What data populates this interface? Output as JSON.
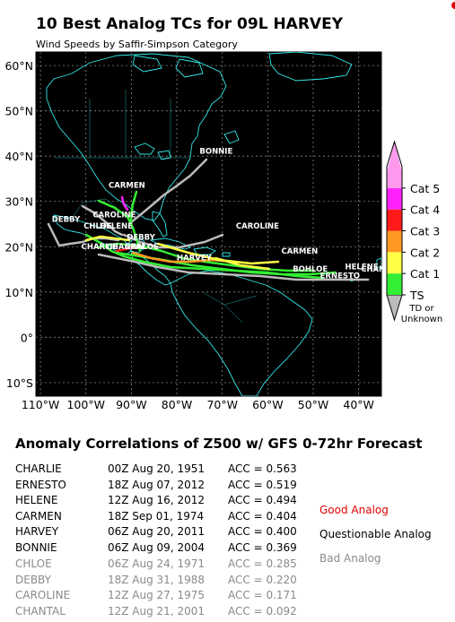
{
  "title": "10 Best Analog TCs for 09L HARVEY",
  "subtitle": "Wind Speeds by Saffir-Simpson Category",
  "map": {
    "lat_labels": [
      "60°N",
      "50°N",
      "40°N",
      "30°N",
      "20°N",
      "10°N",
      "0°",
      "10°S"
    ],
    "lon_labels": [
      "110°W",
      "100°W",
      "90°W",
      "80°W",
      "70°W",
      "60°W",
      "50°W",
      "40°W"
    ],
    "lat_range": [
      -13,
      63
    ],
    "lon_range": [
      -111,
      -35
    ],
    "storm_labels": [
      {
        "text": "BONNIE",
        "lon": -75,
        "lat": 40.5
      },
      {
        "text": "CARMEN",
        "lon": -95,
        "lat": 33
      },
      {
        "text": "DEBBY",
        "lon": -107.5,
        "lat": 25.5
      },
      {
        "text": "CAROLINE",
        "lon": -98.5,
        "lat": 26.5
      },
      {
        "text": "CHLOE",
        "lon": -100.5,
        "lat": 24
      },
      {
        "text": "HELENE",
        "lon": -97,
        "lat": 24
      },
      {
        "text": "DEBBY",
        "lon": -91,
        "lat": 21.5
      },
      {
        "text": "CHARLIE",
        "lon": -101,
        "lat": 19.5
      },
      {
        "text": "CHANTAL",
        "lon": -95.5,
        "lat": 19.5
      },
      {
        "text": "CHALOE",
        "lon": -91.5,
        "lat": 19.5
      },
      {
        "text": "CAROLINE",
        "lon": -67,
        "lat": 24
      },
      {
        "text": "HARVEY",
        "lon": -80,
        "lat": 17
      },
      {
        "text": "CARMEN",
        "lon": -57,
        "lat": 18.5
      },
      {
        "text": "HELENE",
        "lon": -43,
        "lat": 15
      },
      {
        "text": "BOHLOE",
        "lon": -54.5,
        "lat": 14.5
      },
      {
        "text": "CHANTAL",
        "lon": -39.5,
        "lat": 14.5
      },
      {
        "text": "ERNESTO",
        "lon": -48.5,
        "lat": 13
      }
    ]
  },
  "colorbar": {
    "categories": [
      "TS",
      "Cat 1",
      "Cat 2",
      "Cat 3",
      "Cat 4",
      "Cat 5"
    ],
    "colors": [
      "#33ee33",
      "#ffff44",
      "#ff9922",
      "#ff1a1a",
      "#ff22ff",
      "#ff99ee"
    ],
    "below_label_1": "TD or",
    "below_label_2": "Unknown",
    "below_color": "#bbbbbb"
  },
  "acc_title": "Anomaly Correlations of Z500 w/ GFS 0-72hr Forecast",
  "analogs": [
    {
      "name": "CHARLIE",
      "date": "00Z Aug 20, 1951",
      "acc": "ACC = 0.563",
      "quality": "good"
    },
    {
      "name": "ERNESTO",
      "date": "18Z Aug 07, 2012",
      "acc": "ACC = 0.519",
      "quality": "good"
    },
    {
      "name": "HELENE",
      "date": "12Z Aug 16, 2012",
      "acc": "ACC = 0.494",
      "quality": "good"
    },
    {
      "name": "CARMEN",
      "date": "18Z Sep 01, 1974",
      "acc": "ACC = 0.404",
      "quality": "good"
    },
    {
      "name": "HARVEY",
      "date": "06Z Aug 20, 2011",
      "acc": "ACC = 0.400",
      "quality": "good"
    },
    {
      "name": "BONNIE",
      "date": "06Z Aug 09, 2004",
      "acc": "ACC = 0.369",
      "quality": "good"
    },
    {
      "name": "CHLOE",
      "date": "06Z Aug 24, 1971",
      "acc": "ACC = 0.285",
      "quality": "bad"
    },
    {
      "name": "DEBBY",
      "date": "18Z Aug 31, 1988",
      "acc": "ACC = 0.220",
      "quality": "bad"
    },
    {
      "name": "CAROLINE",
      "date": "12Z Aug 27, 1975",
      "acc": "ACC = 0.171",
      "quality": "bad"
    },
    {
      "name": "CHANTAL",
      "date": "12Z Aug 21, 2001",
      "acc": "ACC = 0.092",
      "quality": "bad"
    }
  ],
  "legend": {
    "good": "Good Analog",
    "questionable": "Questionable Analog",
    "bad": "Bad Analog",
    "good_color": "#e00000",
    "questionable_color": "#000000",
    "bad_color": "#8a8a8a"
  }
}
